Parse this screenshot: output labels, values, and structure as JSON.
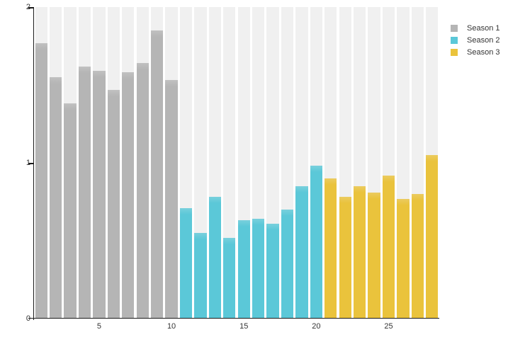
{
  "chart_data": {
    "type": "bar",
    "title": "",
    "xlabel": "",
    "ylabel": "",
    "x": [
      1,
      2,
      3,
      4,
      5,
      6,
      7,
      8,
      9,
      10,
      11,
      12,
      13,
      14,
      15,
      16,
      17,
      18,
      19,
      20,
      21,
      22,
      23,
      24,
      25,
      26,
      27,
      28
    ],
    "series": [
      {
        "name": "Season 1",
        "color": "#b5b5b5",
        "start_x": 1,
        "values": [
          1.77,
          1.55,
          1.38,
          1.62,
          1.59,
          1.47,
          1.58,
          1.64,
          1.85,
          1.53
        ]
      },
      {
        "name": "Season 2",
        "color": "#5bc8d8",
        "start_x": 11,
        "values": [
          0.71,
          0.55,
          0.78,
          0.52,
          0.63,
          0.64,
          0.61,
          0.7,
          0.85,
          0.98
        ]
      },
      {
        "name": "Season 3",
        "color": "#eac33c",
        "start_x": 21,
        "values": [
          0.9,
          0.78,
          0.85,
          0.81,
          0.92,
          0.77,
          0.8,
          1.05
        ]
      }
    ],
    "xticks": [
      5,
      10,
      15,
      20,
      25
    ],
    "yticks": [
      0,
      1,
      2
    ],
    "ylim": [
      0,
      2
    ],
    "grid": false,
    "background_stripes": true,
    "stripe_color": "#f0f0f0",
    "axis_color": "#1a1a1a",
    "text_color": "#333333",
    "legend_position": "top-right",
    "legend": [
      {
        "label": "Season 1",
        "color": "#b5b5b5"
      },
      {
        "label": "Season 2",
        "color": "#5bc8d8"
      },
      {
        "label": "Season 3",
        "color": "#eac33c"
      }
    ]
  }
}
